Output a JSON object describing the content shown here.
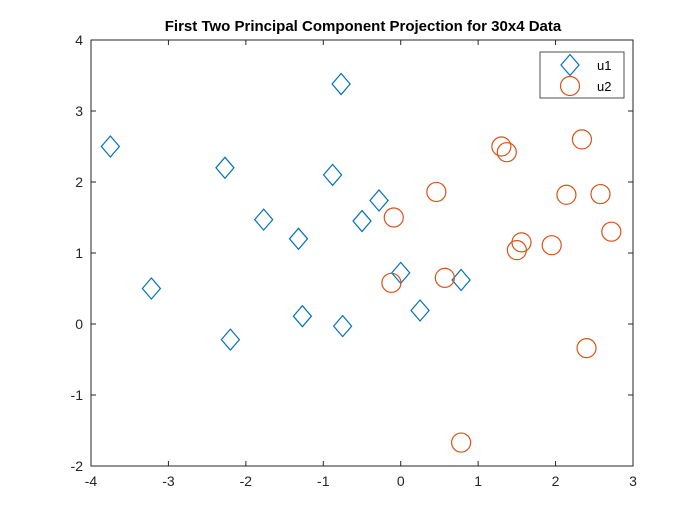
{
  "chart_data": {
    "type": "scatter",
    "title": "First Two Principal Component Projection for 30x4 Data",
    "xlabel": "",
    "ylabel": "",
    "xlim": [
      -4,
      3
    ],
    "ylim": [
      -2,
      4
    ],
    "xticks": [
      -4,
      -3,
      -2,
      -1,
      0,
      1,
      2,
      3
    ],
    "yticks": [
      -2,
      -1,
      0,
      1,
      2,
      3,
      4
    ],
    "grid": false,
    "legend_position": "top-right",
    "series": [
      {
        "name": "u1",
        "marker": "diamond",
        "color": "#0072BD",
        "points": [
          [
            -3.75,
            2.5
          ],
          [
            -3.22,
            0.5
          ],
          [
            -2.27,
            2.2
          ],
          [
            -2.2,
            -0.22
          ],
          [
            -1.77,
            1.47
          ],
          [
            -1.32,
            1.2
          ],
          [
            -1.27,
            0.11
          ],
          [
            -0.88,
            2.1
          ],
          [
            -0.77,
            3.38
          ],
          [
            -0.75,
            -0.03
          ],
          [
            -0.5,
            1.45
          ],
          [
            -0.28,
            1.74
          ],
          [
            0.0,
            0.72
          ],
          [
            0.25,
            0.19
          ],
          [
            0.78,
            0.62
          ]
        ]
      },
      {
        "name": "u2",
        "marker": "circle",
        "color": "#D95319",
        "points": [
          [
            -0.12,
            0.58
          ],
          [
            -0.09,
            1.5
          ],
          [
            0.46,
            1.86
          ],
          [
            0.57,
            0.65
          ],
          [
            0.78,
            -1.67
          ],
          [
            1.3,
            2.5
          ],
          [
            1.37,
            2.42
          ],
          [
            1.5,
            1.04
          ],
          [
            1.56,
            1.15
          ],
          [
            1.95,
            1.11
          ],
          [
            2.14,
            1.82
          ],
          [
            2.34,
            2.6
          ],
          [
            2.4,
            -0.34
          ],
          [
            2.58,
            1.83
          ],
          [
            2.72,
            1.3
          ]
        ]
      }
    ]
  }
}
